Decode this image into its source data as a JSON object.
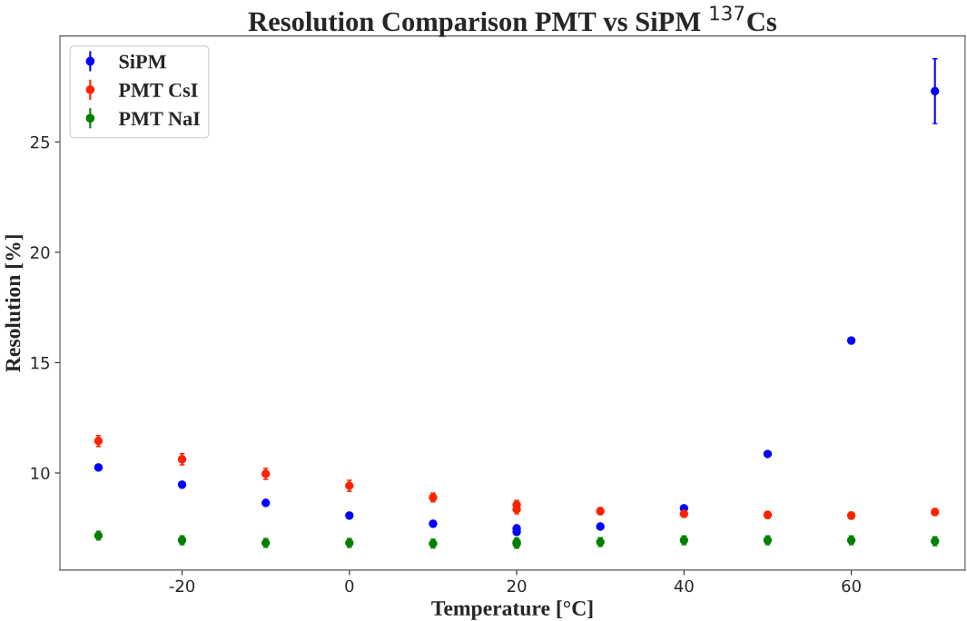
{
  "chart_data": {
    "type": "scatter",
    "title": "Resolution Comparison PMT vs SiPM $^{137}$Cs",
    "xlabel": "Temperature [°C]",
    "ylabel": "Resolution [%]",
    "xlim": [
      -34.6,
      73.6
    ],
    "xticks": [
      -20,
      0,
      20,
      40,
      60
    ],
    "ylim": [
      5.6,
      29.8
    ],
    "yticks": [
      10,
      15,
      20,
      25
    ],
    "grid": false,
    "legend": "top left",
    "marker": "circle",
    "series": [
      {
        "name": "SiPM",
        "color": "#0000ff",
        "x": [
          -30,
          -20,
          -10,
          0,
          10,
          20,
          20,
          30,
          40,
          50,
          60,
          70
        ],
        "values": [
          10.25,
          9.47,
          8.64,
          8.07,
          7.7,
          7.49,
          7.33,
          7.57,
          8.4,
          10.86,
          16.0,
          27.3
        ],
        "errors": [
          null,
          null,
          null,
          null,
          null,
          null,
          null,
          null,
          null,
          null,
          null,
          1.47
        ]
      },
      {
        "name": "PMT CsI",
        "color": "#ff2200",
        "x": [
          -30,
          -20,
          -10,
          0,
          10,
          20,
          20,
          30,
          40,
          50,
          60,
          70
        ],
        "values": [
          11.45,
          10.62,
          9.96,
          9.42,
          8.89,
          8.56,
          8.35,
          8.27,
          8.15,
          8.1,
          8.07,
          8.23
        ],
        "errors": [
          0.25,
          0.25,
          0.25,
          0.25,
          0.2,
          0.2,
          0.2,
          0.15,
          0.15,
          0.15,
          0.15,
          0.15
        ]
      },
      {
        "name": "PMT NaI",
        "color": "#008000",
        "x": [
          -30,
          -20,
          -10,
          0,
          10,
          20,
          20,
          30,
          40,
          50,
          60,
          70
        ],
        "values": [
          7.16,
          6.95,
          6.83,
          6.83,
          6.8,
          6.86,
          6.79,
          6.87,
          6.95,
          6.95,
          6.95,
          6.91
        ],
        "errors": [
          0.2,
          0.2,
          0.2,
          0.2,
          0.2,
          0.2,
          0.2,
          0.2,
          0.2,
          0.2,
          0.2,
          0.2
        ]
      }
    ]
  }
}
